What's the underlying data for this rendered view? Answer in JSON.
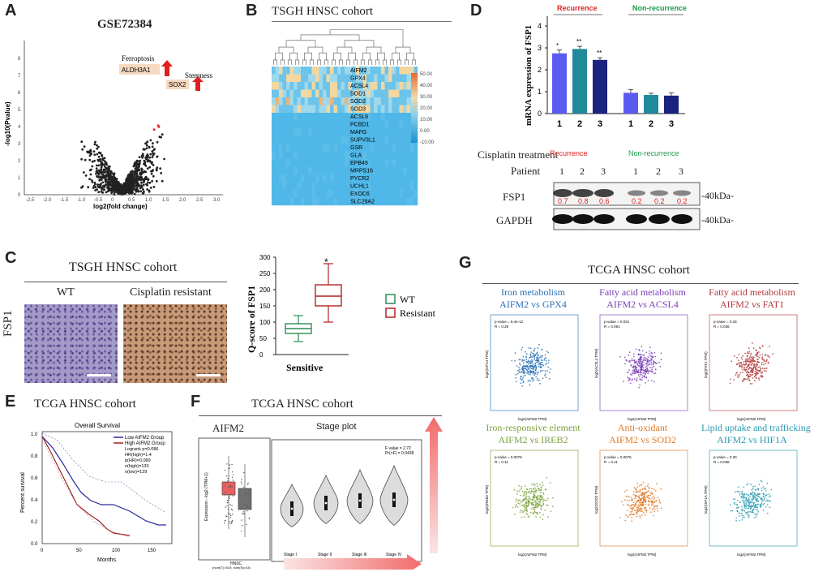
{
  "panels": {
    "A": {
      "label": "A",
      "title": "GSE72384",
      "ylabel": "-log10(Pvalue)",
      "xlabel": "log2(fold change)",
      "xticks": [
        "-2.5",
        "-2.0",
        "-1.5",
        "-1.0",
        "-0.5",
        "0",
        "0.5",
        "1.0",
        "1.5",
        "2.0",
        "2.5",
        "3.0"
      ],
      "yticks": [
        "0",
        "1",
        "2",
        "3",
        "4",
        "5",
        "6",
        "7",
        "8"
      ],
      "ann_ferroptosis": "Ferroptosis",
      "ann_aldh": "ALDH3A1",
      "ann_stemness": "Stemness",
      "ann_sox": "SOX2"
    },
    "B": {
      "label": "B",
      "title": "TSGH HNSC cohort",
      "genes": [
        "AIFM2",
        "GPX4",
        "ACSL4",
        "SOD1",
        "SOD2",
        "SOD3",
        "ACSL6",
        "PCBD1",
        "MAFG",
        "SUPV3L1",
        "GSR",
        "GLA",
        "EPB49",
        "MRPS16",
        "PYCR2",
        "UCHL1",
        "EXOC6",
        "SLC29A2"
      ],
      "scale": [
        "50.00",
        "40.00",
        "30.00",
        "20.00",
        "10.00",
        "0.00",
        "-10.00"
      ]
    },
    "C": {
      "label": "C",
      "title": "TSGH HNSC cohort",
      "wt": "WT",
      "resistant_img": "Cisplatin resistant",
      "row_label": "FSP1",
      "ylabel": "Q-score of FSP1",
      "xlabel": "Sensitive",
      "star": "*",
      "yticks": [
        "0",
        "50",
        "100",
        "150",
        "200",
        "250",
        "300"
      ],
      "legend_wt": "WT",
      "legend_res": "Resistant"
    },
    "D": {
      "label": "D",
      "ylabel": "mRNA expression of FSP1",
      "recurrence": "Recurrence",
      "non_recurrence": "Non-recurrence",
      "xticks": [
        "1",
        "2",
        "3",
        "1",
        "2",
        "3"
      ],
      "yticks": [
        "0",
        "1",
        "2",
        "3",
        "4"
      ],
      "stars": [
        "*",
        "**",
        "**"
      ],
      "cisplatin": "Cisplatin treatment",
      "patient": "Patient",
      "blot_rec": "Recurrence",
      "blot_non": "Non-recurrence",
      "lanes": [
        "1",
        "2",
        "3",
        "1",
        "2",
        "3"
      ],
      "fsp1": "FSP1",
      "gapdh": "GAPDH",
      "kda1": "-40kDa-",
      "kda2": "-40kDa-",
      "quant": [
        "0.7",
        "0.8",
        "0.6",
        "0.2",
        "0.2",
        "0.2"
      ]
    },
    "E": {
      "label": "E",
      "title": "TCGA HNSC cohort",
      "plot_title": "Overall Survival",
      "legend_low": "Low AIFM2 Group",
      "legend_high": "High AIFM2 Group",
      "stats": [
        "Logrank p=0.086",
        "HR(high)=1.4",
        "p(HR)=0.089",
        "n(high)=130",
        "n(low)=129"
      ],
      "ylabel": "Percent survival",
      "xlabel": "Months",
      "xticks": [
        "0",
        "50",
        "100",
        "150"
      ],
      "yticks": [
        "0.0",
        "0.2",
        "0.4",
        "0.6",
        "0.8",
        "1.0"
      ]
    },
    "F": {
      "label": "F",
      "title": "TCGA HNSC cohort",
      "box_title": "AIFM2",
      "box_ylabel": "Expression - log2 (TPM+1)",
      "box_x": "HNSC",
      "box_note": "(num(T)=519; num(N)=44)",
      "stage_title": "Stage plot",
      "fvalue": "F value = 2.72",
      "pr": "Pr(>F) = 0.0438",
      "stages": [
        "Stage I",
        "Stage II",
        "Stage III",
        "Stage IV"
      ]
    },
    "G": {
      "label": "G",
      "title": "TCGA HNSC cohort",
      "plots": [
        {
          "l1": "Iron metabolism",
          "l2": "AIFM2 vs GPX4",
          "color": "#2b6fb4",
          "p": "p-value = 9.4e-12",
          "r": "R = 0.28",
          "yl": "log2(GPX4 TPM)"
        },
        {
          "l1": "Fatty acid metabolism",
          "l2": "AIFM2 vs ACSL4",
          "color": "#7b3fb5",
          "p": "p-value = 0.031",
          "r": "R = 0.091",
          "yl": "log2(ACSL4 TPM)"
        },
        {
          "l1": "Fatty acid metabolism",
          "l2": "AIFM2 vs FAT1",
          "color": "#b23a3a",
          "p": "p-value = 0.33",
          "r": "R = 0.036",
          "yl": "log2(FAT1 TPM)"
        },
        {
          "l1": "Iron-responsive element",
          "l2": "AIFM2 vs IREB2",
          "color": "#7da33c",
          "p": "p-value = 0.0079",
          "r": "R = 0.11",
          "yl": "log2(IREB2 TPM)"
        },
        {
          "l1": "Anti-oxidant",
          "l2": "AIFM2 vs SOD2",
          "color": "#e07a28",
          "p": "p-value = 0.0076",
          "r": "R = 0.11",
          "yl": "log2(SOD2 TPM)"
        },
        {
          "l1": "Lipid uptake and trafficking",
          "l2": "AIFM2 vs HIF1A",
          "color": "#2a9ab0",
          "p": "p-value = 0.30",
          "r": "R = 0.038",
          "yl": "log2(HIF1A TPM)"
        }
      ],
      "xlabel": "log2(AIFM2 TPM)"
    }
  },
  "chart_data": [
    {
      "type": "bar",
      "title": "mRNA expression of FSP1",
      "categories": [
        "Rec 1",
        "Rec 2",
        "Rec 3",
        "Non 1",
        "Non 2",
        "Non 3"
      ],
      "values": [
        2.75,
        2.95,
        2.45,
        0.95,
        0.85,
        0.82
      ],
      "errors": [
        0.15,
        0.12,
        0.1,
        0.15,
        0.08,
        0.12
      ],
      "colors": [
        "#5a5cf0",
        "#1f8a9a",
        "#1a237e",
        "#5a5cf0",
        "#1f8a9a",
        "#1a237e"
      ],
      "ylim": [
        0,
        4
      ]
    },
    {
      "type": "box",
      "title": "Q-score of FSP1",
      "groups": [
        {
          "name": "WT",
          "min": 40,
          "q1": 65,
          "median": 80,
          "q3": 95,
          "max": 120,
          "color": "#2e8b57"
        },
        {
          "name": "Resistant",
          "min": 100,
          "q1": 150,
          "median": 180,
          "q3": 215,
          "max": 280,
          "color": "#b22222"
        }
      ],
      "ylim": [
        0,
        300
      ]
    }
  ]
}
